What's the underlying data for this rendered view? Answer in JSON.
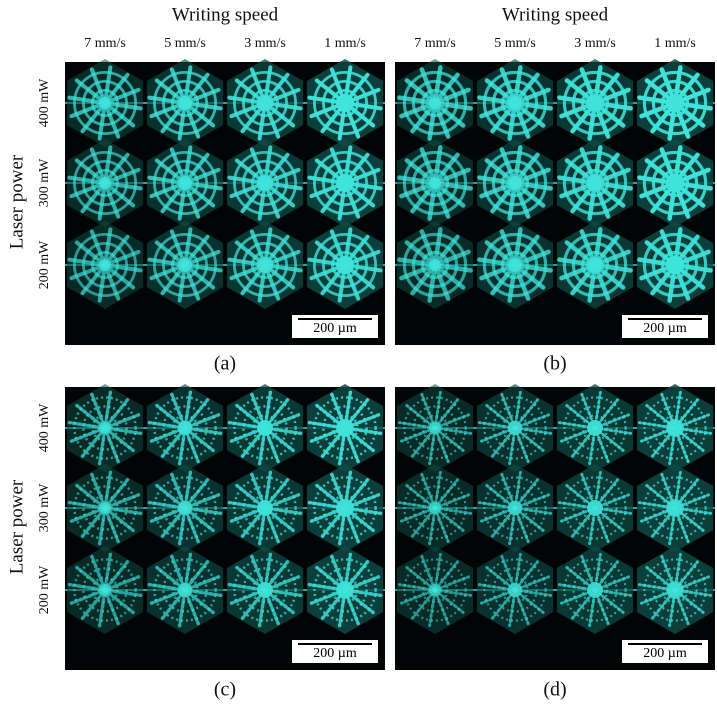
{
  "column_headers": [
    {
      "title": "Writing speed",
      "speeds": [
        "7 mm/s",
        "5 mm/s",
        "3 mm/s",
        "1 mm/s"
      ]
    },
    {
      "title": "Writing speed",
      "speeds": [
        "7 mm/s",
        "5 mm/s",
        "3 mm/s",
        "1 mm/s"
      ]
    }
  ],
  "row_headers": [
    {
      "title": "Laser power",
      "powers": [
        "400 mW",
        "300 mW",
        "200 mW"
      ]
    },
    {
      "title": "Laser power",
      "powers": [
        "400 mW",
        "300 mW",
        "200 mW"
      ]
    }
  ],
  "panels": [
    {
      "label": "(a)",
      "scale_bar": "200 µm"
    },
    {
      "label": "(b)",
      "scale_bar": "200 µm"
    },
    {
      "label": "(c)",
      "scale_bar": "200 µm"
    },
    {
      "label": "(d)",
      "scale_bar": "200 µm"
    }
  ]
}
